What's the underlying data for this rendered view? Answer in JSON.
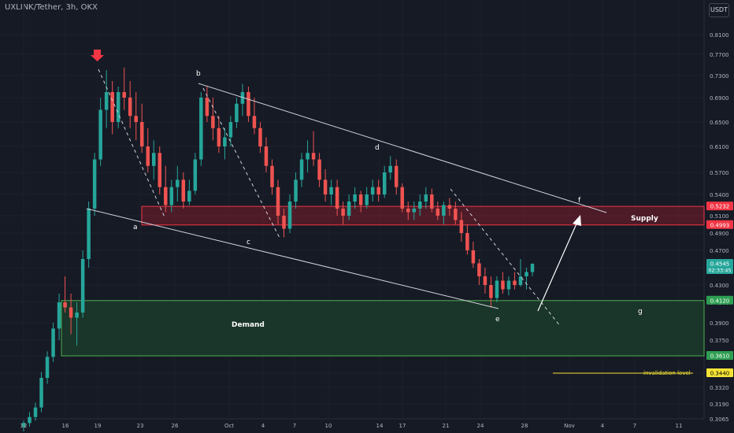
{
  "header": {
    "symbol": "UXLINK/Tether, 3h, OKX",
    "currency": "USDT"
  },
  "colors": {
    "bg": "#161a25",
    "up": "#26a69a",
    "down": "#ef5350",
    "supply_fill": "#7b1e2c",
    "demand_fill": "#1b3b2a",
    "line": "#d1d4dc",
    "arrow": "#f23645"
  },
  "chart_data": {
    "type": "candlestick",
    "y_ticks": [
      "0.8100",
      "0.7700",
      "0.7300",
      "0.6900",
      "0.6500",
      "0.6100",
      "0.5700",
      "0.5400",
      "0.5100",
      "0.4900",
      "0.4700",
      "0.4500",
      "0.4300",
      "0.4100",
      "0.3900",
      "0.3750",
      "0.3610",
      "0.3440",
      "0.3320",
      "0.3190",
      "0.3065"
    ],
    "x_ticks": [
      "12",
      "16",
      "19",
      "23",
      "26",
      "Oct",
      "4",
      "7",
      "10",
      "14",
      "17",
      "21",
      "24",
      "28",
      "Nov",
      "4",
      "7",
      "11"
    ],
    "price_badges": [
      {
        "label": "0.5232",
        "color": "#f23645"
      },
      {
        "label": "0.4993",
        "color": "#f23645"
      },
      {
        "label": "0.4545",
        "sub": "02:33:45",
        "color": "#26a69a"
      },
      {
        "label": "0.4120",
        "color": "#2e9e52"
      },
      {
        "label": "0.3610",
        "color": "#2e9e52"
      },
      {
        "label": "0.3440",
        "color": "#f5e335"
      }
    ],
    "zones": [
      {
        "name": "Supply",
        "top": 0.5232,
        "bottom": 0.4993
      },
      {
        "name": "Demand",
        "top": 0.412,
        "bottom": 0.361
      }
    ],
    "invalidation": {
      "label": "invalidation level",
      "value": 0.344
    },
    "wave_labels": [
      "a",
      "b",
      "c",
      "d",
      "e",
      "f",
      "g"
    ],
    "candles": [
      [
        0.3,
        0.305,
        0.296,
        0.303
      ],
      [
        0.303,
        0.312,
        0.3,
        0.308
      ],
      [
        0.308,
        0.32,
        0.305,
        0.316
      ],
      [
        0.316,
        0.345,
        0.312,
        0.34
      ],
      [
        0.34,
        0.365,
        0.335,
        0.36
      ],
      [
        0.36,
        0.39,
        0.355,
        0.385
      ],
      [
        0.385,
        0.42,
        0.375,
        0.41
      ],
      [
        0.41,
        0.44,
        0.4,
        0.405
      ],
      [
        0.405,
        0.42,
        0.38,
        0.395
      ],
      [
        0.395,
        0.41,
        0.37,
        0.4
      ],
      [
        0.4,
        0.47,
        0.395,
        0.46
      ],
      [
        0.46,
        0.53,
        0.45,
        0.52
      ],
      [
        0.52,
        0.6,
        0.51,
        0.59
      ],
      [
        0.59,
        0.69,
        0.58,
        0.67
      ],
      [
        0.67,
        0.74,
        0.64,
        0.7
      ],
      [
        0.7,
        0.72,
        0.63,
        0.65
      ],
      [
        0.65,
        0.71,
        0.64,
        0.7
      ],
      [
        0.7,
        0.745,
        0.67,
        0.69
      ],
      [
        0.69,
        0.72,
        0.64,
        0.66
      ],
      [
        0.66,
        0.7,
        0.62,
        0.65
      ],
      [
        0.65,
        0.68,
        0.6,
        0.61
      ],
      [
        0.61,
        0.64,
        0.57,
        0.58
      ],
      [
        0.58,
        0.62,
        0.56,
        0.6
      ],
      [
        0.6,
        0.61,
        0.54,
        0.55
      ],
      [
        0.55,
        0.58,
        0.515,
        0.525
      ],
      [
        0.525,
        0.56,
        0.515,
        0.55
      ],
      [
        0.55,
        0.58,
        0.53,
        0.56
      ],
      [
        0.56,
        0.57,
        0.52,
        0.53
      ],
      [
        0.53,
        0.56,
        0.525,
        0.545
      ],
      [
        0.545,
        0.6,
        0.54,
        0.59
      ],
      [
        0.59,
        0.7,
        0.58,
        0.69
      ],
      [
        0.69,
        0.71,
        0.65,
        0.66
      ],
      [
        0.66,
        0.69,
        0.62,
        0.64
      ],
      [
        0.64,
        0.66,
        0.6,
        0.61
      ],
      [
        0.61,
        0.64,
        0.59,
        0.625
      ],
      [
        0.625,
        0.66,
        0.61,
        0.65
      ],
      [
        0.65,
        0.69,
        0.64,
        0.68
      ],
      [
        0.68,
        0.715,
        0.66,
        0.7
      ],
      [
        0.7,
        0.71,
        0.65,
        0.66
      ],
      [
        0.66,
        0.69,
        0.63,
        0.64
      ],
      [
        0.64,
        0.65,
        0.6,
        0.61
      ],
      [
        0.61,
        0.625,
        0.57,
        0.58
      ],
      [
        0.58,
        0.59,
        0.54,
        0.55
      ],
      [
        0.55,
        0.56,
        0.5,
        0.51
      ],
      [
        0.51,
        0.52,
        0.485,
        0.495
      ],
      [
        0.495,
        0.54,
        0.49,
        0.53
      ],
      [
        0.53,
        0.57,
        0.52,
        0.56
      ],
      [
        0.56,
        0.6,
        0.55,
        0.59
      ],
      [
        0.59,
        0.62,
        0.57,
        0.6
      ],
      [
        0.6,
        0.635,
        0.58,
        0.59
      ],
      [
        0.59,
        0.6,
        0.55,
        0.56
      ],
      [
        0.56,
        0.575,
        0.53,
        0.54
      ],
      [
        0.54,
        0.56,
        0.525,
        0.55
      ],
      [
        0.55,
        0.56,
        0.51,
        0.52
      ],
      [
        0.52,
        0.53,
        0.5,
        0.51
      ],
      [
        0.51,
        0.54,
        0.505,
        0.53
      ],
      [
        0.53,
        0.55,
        0.52,
        0.54
      ],
      [
        0.54,
        0.545,
        0.515,
        0.525
      ],
      [
        0.525,
        0.55,
        0.52,
        0.54
      ],
      [
        0.54,
        0.56,
        0.53,
        0.55
      ],
      [
        0.55,
        0.56,
        0.53,
        0.54
      ],
      [
        0.54,
        0.58,
        0.535,
        0.57
      ],
      [
        0.57,
        0.595,
        0.56,
        0.58
      ],
      [
        0.58,
        0.59,
        0.54,
        0.55
      ],
      [
        0.55,
        0.555,
        0.515,
        0.52
      ],
      [
        0.52,
        0.53,
        0.505,
        0.515
      ],
      [
        0.515,
        0.53,
        0.505,
        0.52
      ],
      [
        0.52,
        0.54,
        0.51,
        0.53
      ],
      [
        0.53,
        0.55,
        0.52,
        0.54
      ],
      [
        0.54,
        0.548,
        0.515,
        0.52
      ],
      [
        0.52,
        0.53,
        0.505,
        0.51
      ],
      [
        0.51,
        0.53,
        0.5,
        0.525
      ],
      [
        0.525,
        0.535,
        0.51,
        0.52
      ],
      [
        0.52,
        0.53,
        0.5,
        0.505
      ],
      [
        0.505,
        0.515,
        0.48,
        0.49
      ],
      [
        0.49,
        0.5,
        0.465,
        0.47
      ],
      [
        0.47,
        0.48,
        0.45,
        0.455
      ],
      [
        0.455,
        0.46,
        0.43,
        0.44
      ],
      [
        0.44,
        0.45,
        0.42,
        0.43
      ],
      [
        0.43,
        0.44,
        0.405,
        0.415
      ],
      [
        0.415,
        0.44,
        0.41,
        0.435
      ],
      [
        0.435,
        0.445,
        0.42,
        0.425
      ],
      [
        0.425,
        0.44,
        0.418,
        0.435
      ],
      [
        0.435,
        0.445,
        0.425,
        0.43
      ],
      [
        0.43,
        0.46,
        0.428,
        0.44
      ],
      [
        0.44,
        0.45,
        0.425,
        0.445
      ],
      [
        0.445,
        0.455,
        0.44,
        0.4545
      ]
    ]
  }
}
